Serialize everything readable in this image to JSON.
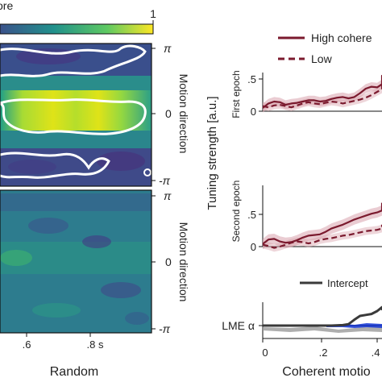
{
  "colorbar": {
    "label": "ore",
    "max_label": "1"
  },
  "left_panels": {
    "top": {
      "ylabel": "Motion direction",
      "yticks": [
        "π",
        "0",
        "-π"
      ]
    },
    "bottom": {
      "ylabel": "Motion direction",
      "yticks": [
        "π",
        "0",
        "-π"
      ],
      "xticks": [
        ".6",
        ".8 s"
      ],
      "xlabel": "Random"
    }
  },
  "right_panels": {
    "ylabel": "Tuning strength [a.u.]",
    "legend": {
      "high": "High cohere",
      "low": "Low"
    },
    "legend2": {
      "intercept": "Intercept"
    },
    "first": {
      "title": "First epoch",
      "yticks": [
        ".5",
        "0"
      ]
    },
    "second": {
      "title": "Second epoch",
      "yticks": [
        ".5",
        "0"
      ]
    },
    "lme": {
      "label": "LME α"
    },
    "xticks": [
      "0",
      ".2",
      ".4"
    ],
    "xlabel": "Coherent motio"
  },
  "colors": {
    "dark_red": "#7b1a2e",
    "light_red": "#d9a3ad",
    "intercept": "#3a3a3a",
    "blue": "#1f3fd6",
    "gray": "#9a9a9a"
  },
  "chart_data": [
    {
      "type": "line",
      "panel": "first-epoch",
      "xlabel": "Coherent motio",
      "ylabel": "Tuning strength [a.u.]",
      "xlim": [
        0,
        0.5
      ],
      "ylim": [
        -0.05,
        0.6
      ],
      "x": [
        0.0,
        0.02,
        0.04,
        0.06,
        0.08,
        0.1,
        0.12,
        0.14,
        0.16,
        0.18,
        0.2,
        0.22,
        0.24,
        0.26,
        0.28,
        0.3,
        0.32,
        0.34,
        0.36,
        0.38,
        0.4,
        0.42,
        0.44,
        0.46,
        0.48,
        0.5
      ],
      "series": [
        {
          "name": "High cohere",
          "style": "solid",
          "values": [
            0.05,
            0.12,
            0.15,
            0.14,
            0.1,
            0.12,
            0.13,
            0.15,
            0.17,
            0.17,
            0.15,
            0.16,
            0.19,
            0.21,
            0.22,
            0.2,
            0.22,
            0.28,
            0.35,
            0.38,
            0.37,
            0.42,
            0.5,
            0.55,
            0.54,
            0.52
          ],
          "band": 0.07
        },
        {
          "name": "Low",
          "style": "dashed",
          "values": [
            0.08,
            0.06,
            0.09,
            0.1,
            0.08,
            0.06,
            0.09,
            0.12,
            0.14,
            0.12,
            0.11,
            0.13,
            0.15,
            0.14,
            0.12,
            0.14,
            0.16,
            0.18,
            0.21,
            0.25,
            0.3,
            0.34,
            0.36,
            0.4,
            0.42,
            0.41
          ],
          "band": 0.06
        }
      ]
    },
    {
      "type": "line",
      "panel": "second-epoch",
      "xlabel": "Coherent motio",
      "ylabel": "Tuning strength [a.u.]",
      "xlim": [
        0,
        0.5
      ],
      "ylim": [
        -0.05,
        0.75
      ],
      "x": [
        0.0,
        0.02,
        0.04,
        0.06,
        0.08,
        0.1,
        0.12,
        0.14,
        0.16,
        0.18,
        0.2,
        0.22,
        0.24,
        0.26,
        0.28,
        0.3,
        0.32,
        0.34,
        0.36,
        0.38,
        0.4,
        0.42,
        0.44,
        0.46,
        0.48,
        0.5
      ],
      "series": [
        {
          "name": "High cohere",
          "style": "solid",
          "values": [
            0.04,
            0.11,
            0.12,
            0.08,
            0.06,
            0.07,
            0.1,
            0.14,
            0.17,
            0.18,
            0.19,
            0.23,
            0.28,
            0.31,
            0.34,
            0.38,
            0.42,
            0.45,
            0.48,
            0.51,
            0.53,
            0.56,
            0.6,
            0.63,
            0.66,
            0.68
          ],
          "band": 0.08
        },
        {
          "name": "Low",
          "style": "dashed",
          "values": [
            0.03,
            0.01,
            -0.02,
            0.0,
            0.03,
            0.06,
            0.08,
            0.07,
            0.05,
            0.07,
            0.1,
            0.12,
            0.13,
            0.15,
            0.17,
            0.18,
            0.2,
            0.22,
            0.24,
            0.25,
            0.26,
            0.28,
            0.3,
            0.32,
            0.33,
            0.34
          ],
          "band": 0.06
        }
      ]
    },
    {
      "type": "line",
      "panel": "lme",
      "xlim": [
        0,
        0.5
      ],
      "x": [
        0.0,
        0.04,
        0.08,
        0.12,
        0.16,
        0.2,
        0.24,
        0.28,
        0.3,
        0.32,
        0.34,
        0.36,
        0.38,
        0.4,
        0.42,
        0.44,
        0.46,
        0.48,
        0.5
      ],
      "series": [
        {
          "name": "Intercept",
          "values": [
            0,
            0,
            0,
            0,
            0,
            0,
            0,
            0.05,
            0.15,
            0.6,
            1.0,
            1.1,
            1.2,
            1.5,
            1.9,
            1.8,
            1.7,
            1.75,
            1.8
          ]
        }
      ]
    }
  ]
}
